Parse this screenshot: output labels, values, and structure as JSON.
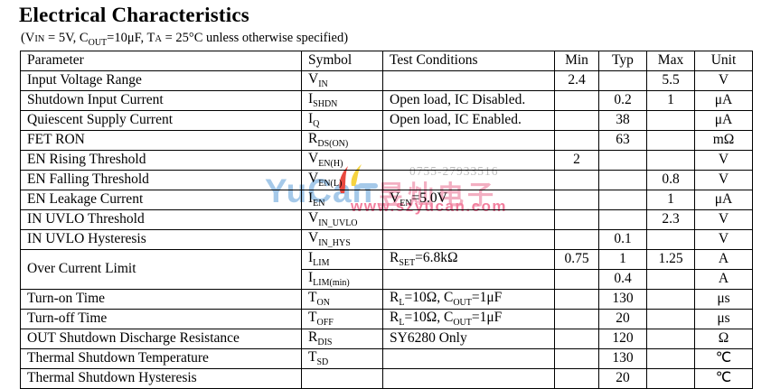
{
  "page": {
    "title": "Electrical Characteristics",
    "subtitle_segments": [
      {
        "t": "(V"
      },
      {
        "sc": "IN"
      },
      {
        "t": " = 5V, C"
      },
      {
        "s": "OUT"
      },
      {
        "t": "=10μF, T"
      },
      {
        "sc": "A"
      },
      {
        "t": " = 25°C unless otherwise specified)"
      }
    ]
  },
  "table": {
    "headers": [
      "Parameter",
      "Symbol",
      "Test Conditions",
      "Min",
      "Typ",
      "Max",
      "Unit"
    ],
    "rows": [
      {
        "parameter": "Input Voltage Range",
        "symbol": [
          {
            "t": "V"
          },
          {
            "s": "IN"
          }
        ],
        "conditions": [],
        "min": "2.4",
        "typ": "",
        "max": "5.5",
        "unit": "V"
      },
      {
        "parameter": "Shutdown Input Current",
        "symbol": [
          {
            "t": "I"
          },
          {
            "s": "SHDN"
          }
        ],
        "conditions": [
          {
            "t": "Open load, IC Disabled."
          }
        ],
        "min": "",
        "typ": "0.2",
        "max": "1",
        "unit": "μA"
      },
      {
        "parameter": "Quiescent Supply Current",
        "symbol": [
          {
            "t": "I"
          },
          {
            "s": "Q"
          }
        ],
        "conditions": [
          {
            "t": "Open load, IC Enabled."
          }
        ],
        "min": "",
        "typ": "38",
        "max": "",
        "unit": "μA"
      },
      {
        "parameter": "FET RON",
        "symbol": [
          {
            "t": "R"
          },
          {
            "s": "DS(ON)"
          }
        ],
        "conditions": [],
        "min": "",
        "typ": "63",
        "max": "",
        "unit": "mΩ"
      },
      {
        "parameter": "EN Rising Threshold",
        "symbol": [
          {
            "t": "V"
          },
          {
            "s": "EN(H)"
          }
        ],
        "conditions": [],
        "min": "2",
        "typ": "",
        "max": "",
        "unit": "V"
      },
      {
        "parameter": "EN Falling Threshold",
        "symbol": [
          {
            "t": "V"
          },
          {
            "s": "EN(L)"
          }
        ],
        "conditions": [],
        "min": "",
        "typ": "",
        "max": "0.8",
        "unit": "V"
      },
      {
        "parameter": "EN Leakage Current",
        "symbol": [
          {
            "t": "I"
          },
          {
            "s": "EN"
          }
        ],
        "conditions": [
          {
            "t": "V"
          },
          {
            "s": "EN"
          },
          {
            "t": "=5.0V"
          }
        ],
        "min": "",
        "typ": "",
        "max": "1",
        "unit": "μA"
      },
      {
        "parameter": "IN UVLO Threshold",
        "symbol": [
          {
            "t": "V"
          },
          {
            "s": "IN_UVLO"
          }
        ],
        "conditions": [],
        "min": "",
        "typ": "",
        "max": "2.3",
        "unit": "V"
      },
      {
        "parameter": "IN UVLO Hysteresis",
        "symbol": [
          {
            "t": "V"
          },
          {
            "s": "IN_HYS"
          }
        ],
        "conditions": [],
        "min": "",
        "typ": "0.1",
        "max": "",
        "unit": "V"
      },
      {
        "parameter": "Over Current Limit",
        "param_rowspan": 2,
        "symbol": [
          {
            "t": "I"
          },
          {
            "s": "LIM"
          }
        ],
        "conditions": [
          {
            "t": "R"
          },
          {
            "s": "SET"
          },
          {
            "t": "=6.8kΩ"
          }
        ],
        "min": "0.75",
        "typ": "1",
        "max": "1.25",
        "unit": "A"
      },
      {
        "parameter": null,
        "symbol": [
          {
            "t": "I"
          },
          {
            "s": "LIM(min)"
          }
        ],
        "conditions": [],
        "min": "",
        "typ": "0.4",
        "max": "",
        "unit": "A"
      },
      {
        "parameter": "Turn-on Time",
        "symbol": [
          {
            "t": "T"
          },
          {
            "s": "ON"
          }
        ],
        "conditions": [
          {
            "t": "R"
          },
          {
            "s": "L"
          },
          {
            "t": "=10Ω, C"
          },
          {
            "s": "OUT"
          },
          {
            "t": "=1μF"
          }
        ],
        "min": "",
        "typ": "130",
        "max": "",
        "unit": "μs"
      },
      {
        "parameter": "Turn-off Time",
        "symbol": [
          {
            "t": "T"
          },
          {
            "s": "OFF"
          }
        ],
        "conditions": [
          {
            "t": "R"
          },
          {
            "s": "L"
          },
          {
            "t": "=10Ω, C"
          },
          {
            "s": "OUT"
          },
          {
            "t": "=1μF"
          }
        ],
        "min": "",
        "typ": "20",
        "max": "",
        "unit": "μs"
      },
      {
        "parameter": "OUT Shutdown Discharge Resistance",
        "symbol": [
          {
            "t": "R"
          },
          {
            "s": "DIS"
          }
        ],
        "conditions": [
          {
            "t": "SY6280 Only"
          }
        ],
        "min": "",
        "typ": "120",
        "max": "",
        "unit": "Ω"
      },
      {
        "parameter": "Thermal Shutdown Temperature",
        "symbol": [
          {
            "t": "T"
          },
          {
            "s": "SD"
          }
        ],
        "conditions": [],
        "min": "",
        "typ": "130",
        "max": "",
        "unit": "℃"
      },
      {
        "parameter": "Thermal Shutdown Hysteresis",
        "symbol": [],
        "conditions": [],
        "min": "",
        "typ": "20",
        "max": "",
        "unit": "℃"
      }
    ]
  },
  "watermark": {
    "phone": "0755-27933516",
    "brand": "YuCan",
    "brand_cn": "昱灿电子",
    "url": "www.szyucan.com",
    "colors": {
      "brand": "#a5c9e9",
      "dash": "#a5c9e9",
      "cn": "#f3afc2",
      "url": "#f27f9e",
      "phone": "#bdbdbd",
      "flame_red": "#e8483f",
      "flame_yellow": "#f5d33f"
    }
  }
}
